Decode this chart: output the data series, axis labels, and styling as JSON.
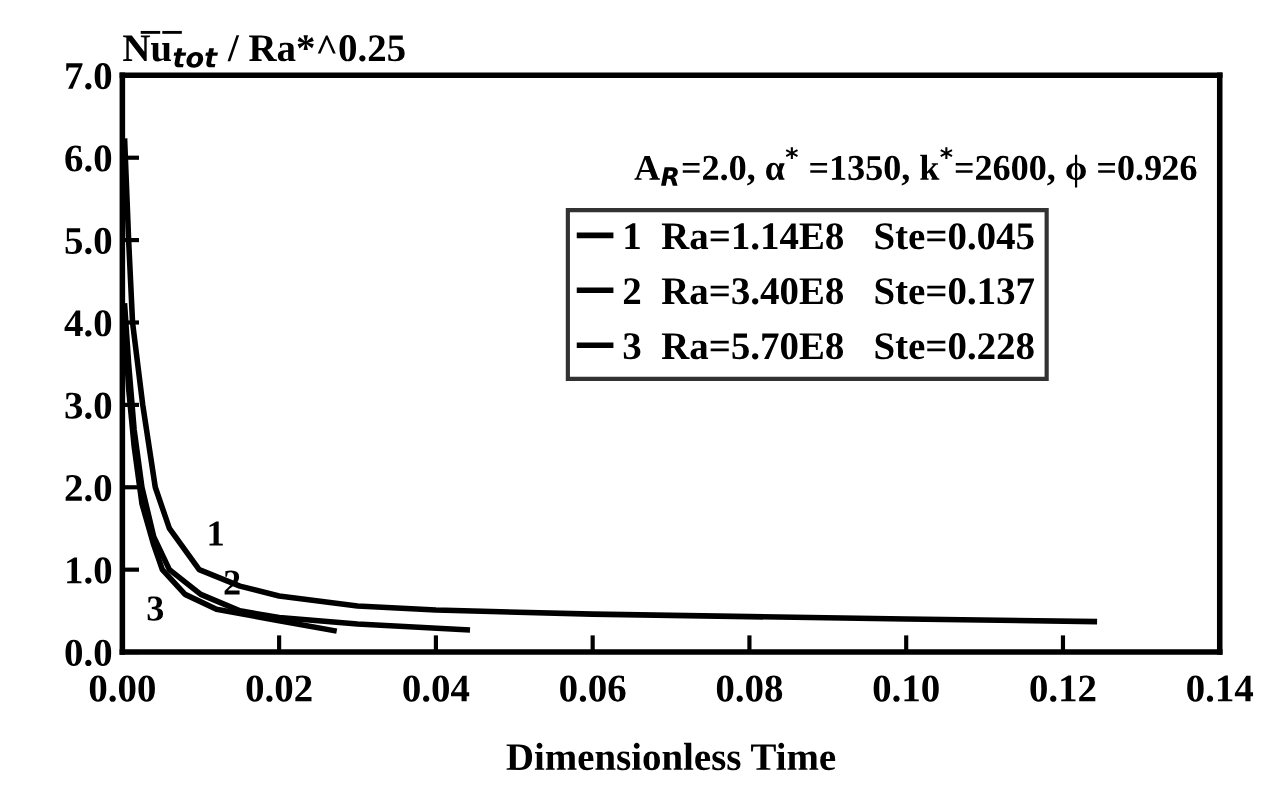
{
  "chart_data": {
    "type": "line",
    "ylabel": "N̅u̅$_{tot}$ / Ra*^0.25",
    "xlabel": "Dimensionless Time",
    "xlim": [
      0,
      0.14
    ],
    "xticks": [
      {
        "value": 0,
        "label": "0.00"
      },
      0.02,
      0.04,
      0.06,
      0.08,
      {
        "value": 0.1,
        "label": "0.10"
      },
      0.12,
      0.14
    ],
    "ylim": [
      0,
      7
    ],
    "yticks": [
      {
        "value": 0,
        "label": "0.0"
      },
      {
        "value": 1,
        "label": "1.0"
      },
      {
        "value": 2,
        "label": "2.0"
      },
      {
        "value": 3,
        "label": "3.0"
      },
      {
        "value": 4,
        "label": "4.0"
      },
      {
        "value": 5,
        "label": "5.0"
      },
      {
        "value": 6,
        "label": "6.0"
      },
      {
        "value": 7,
        "label": "7.0"
      }
    ],
    "grid": false,
    "legend": "right",
    "line_style": "solid",
    "series": [
      {
        "name": "1  Ra=1.14E8   Ste=0.045",
        "color": "#000000",
        "x": [
          0.0003,
          0.0008,
          0.0013,
          0.0026,
          0.0042,
          0.006,
          0.0098,
          0.015,
          0.02,
          0.03,
          0.04,
          0.06,
          0.08,
          0.1,
          0.124
        ],
        "values": [
          6.2,
          5.0,
          4.0,
          3.0,
          2.0,
          1.5,
          1.0,
          0.8,
          0.68,
          0.56,
          0.51,
          0.46,
          0.43,
          0.4,
          0.37
        ]
      },
      {
        "name": "2  Ra=3.40E8   Ste=0.137",
        "color": "#000000",
        "x": [
          0.0003,
          0.0008,
          0.0015,
          0.0025,
          0.004,
          0.006,
          0.01,
          0.015,
          0.02,
          0.03,
          0.044
        ],
        "values": [
          4.2,
          3.5,
          2.7,
          2.0,
          1.4,
          1.0,
          0.7,
          0.5,
          0.42,
          0.34,
          0.27
        ]
      },
      {
        "name": "3  Ra=5.70E8   Ste=0.228",
        "color": "#000000",
        "x": [
          0.0003,
          0.0008,
          0.0015,
          0.0025,
          0.004,
          0.0051,
          0.008,
          0.012,
          0.02,
          0.027
        ],
        "values": [
          4.0,
          3.2,
          2.5,
          1.8,
          1.3,
          1.0,
          0.7,
          0.52,
          0.38,
          0.26
        ]
      }
    ],
    "annotations": [
      {
        "text": "A$_{R}$=2.0, α$^{*}$ =1350, k$^{*}$=2600, ϕ =0.926"
      },
      "1",
      "2",
      "3"
    ]
  }
}
